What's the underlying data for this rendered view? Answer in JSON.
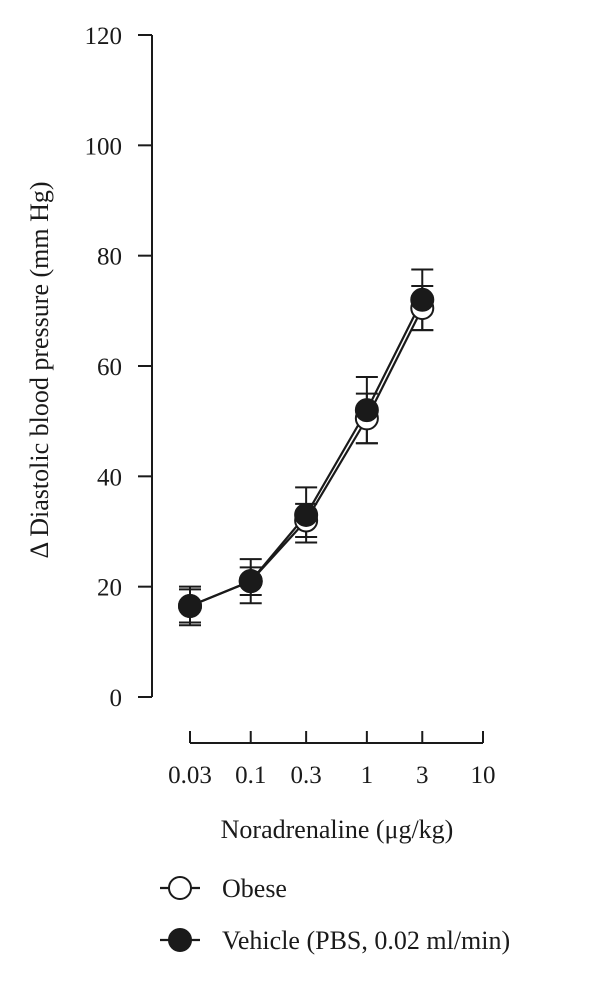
{
  "chart_data": {
    "type": "line",
    "title": "",
    "xlabel": "Noradrenaline (μg/kg)",
    "ylabel": "Δ Diastolic blood pressure (mm Hg)",
    "x_scale": "log",
    "x_ticks": [
      "0.03",
      "0.1",
      "0.3",
      "1",
      "3",
      "10"
    ],
    "x_tick_values": [
      0.03,
      0.1,
      0.3,
      1,
      3,
      10
    ],
    "y_ticks": [
      "0",
      "20",
      "40",
      "60",
      "80",
      "100",
      "120"
    ],
    "y_tick_values": [
      0,
      20,
      40,
      60,
      80,
      100,
      120
    ],
    "ylim": [
      0,
      120
    ],
    "grid": false,
    "legend_position": "bottom",
    "series": [
      {
        "name": "Obese",
        "marker": "open-circle",
        "color": "#1a1a1a",
        "x": [
          0.03,
          0.1,
          0.3,
          1,
          3
        ],
        "y": [
          16.5,
          21.0,
          32.0,
          50.5,
          70.5
        ],
        "error": [
          3.0,
          2.5,
          3.0,
          4.5,
          4.0
        ]
      },
      {
        "name": "Vehicle (PBS, 0.02 ml/min)",
        "marker": "filled-circle",
        "color": "#1a1a1a",
        "x": [
          0.03,
          0.1,
          0.3,
          1,
          3
        ],
        "y": [
          16.5,
          21.0,
          33.0,
          52.0,
          72.0
        ],
        "error": [
          3.5,
          4.0,
          5.0,
          6.0,
          5.5
        ]
      }
    ]
  }
}
